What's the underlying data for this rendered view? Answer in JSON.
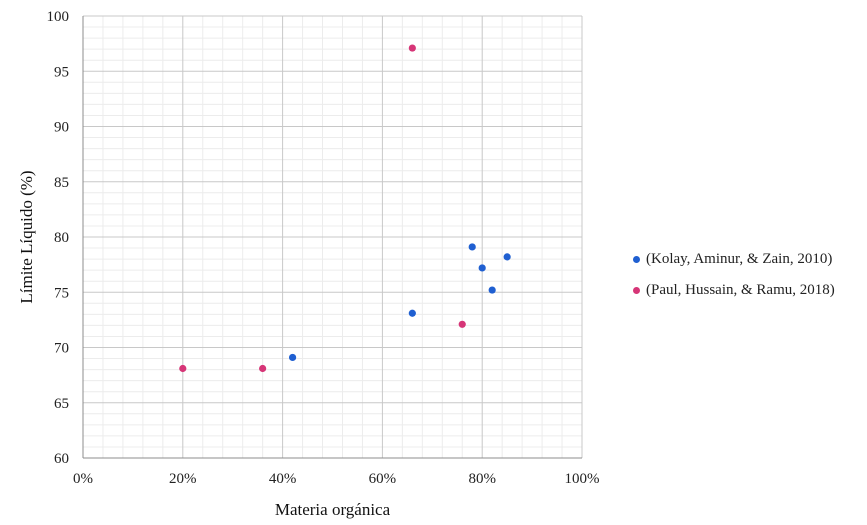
{
  "chart_data": {
    "type": "scatter",
    "xlabel": "Materia orgánica",
    "ylabel": "Límite Líquido (%)",
    "xlim": [
      0,
      1
    ],
    "ylim": [
      60,
      100
    ],
    "x_ticks": [
      "0%",
      "20%",
      "40%",
      "60%",
      "80%",
      "100%"
    ],
    "y_ticks": [
      "60",
      "65",
      "70",
      "75",
      "80",
      "85",
      "90",
      "95",
      "100"
    ],
    "grid": true,
    "legend_position": "right",
    "series": [
      {
        "name": "(Kolay, Aminur, & Zain, 2010)",
        "color": "#1f5fd1",
        "points": [
          {
            "x": 0.42,
            "y": 69.1
          },
          {
            "x": 0.66,
            "y": 73.1
          },
          {
            "x": 0.78,
            "y": 79.1
          },
          {
            "x": 0.8,
            "y": 77.2
          },
          {
            "x": 0.82,
            "y": 75.2
          },
          {
            "x": 0.85,
            "y": 78.2
          }
        ]
      },
      {
        "name": "(Paul, Hussain, & Ramu, 2018)",
        "color": "#d63577",
        "points": [
          {
            "x": 0.2,
            "y": 68.1
          },
          {
            "x": 0.36,
            "y": 68.1
          },
          {
            "x": 0.66,
            "y": 97.1
          },
          {
            "x": 0.76,
            "y": 72.1
          }
        ]
      }
    ]
  }
}
